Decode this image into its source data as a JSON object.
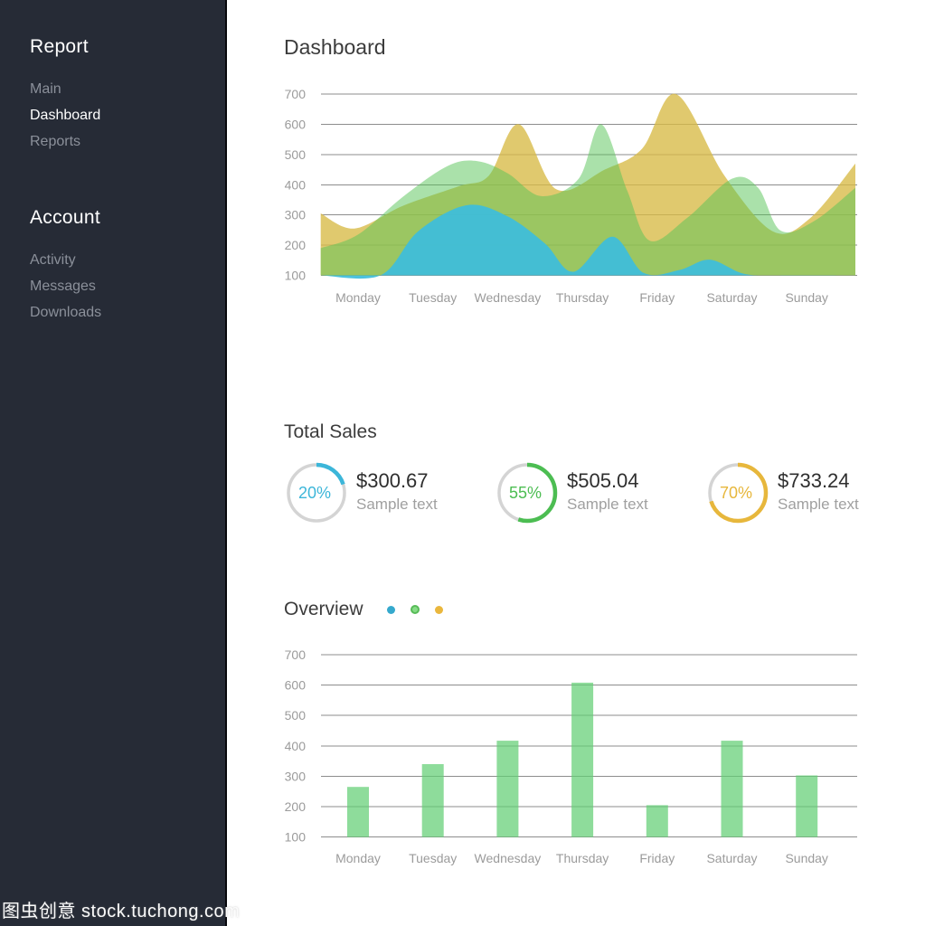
{
  "page": {
    "title": "Dashboard"
  },
  "sidebar": {
    "sections": [
      {
        "heading": "Report",
        "items": [
          {
            "label": "Main",
            "active": false
          },
          {
            "label": "Dashboard",
            "active": true
          },
          {
            "label": "Reports",
            "active": false
          }
        ]
      },
      {
        "heading": "Account",
        "items": [
          {
            "label": "Activity",
            "active": false
          },
          {
            "label": "Messages",
            "active": false
          },
          {
            "label": "Downloads",
            "active": false
          }
        ]
      }
    ]
  },
  "sales": {
    "title": "Total Sales",
    "ring_color": "#d4d4d4",
    "cards": [
      {
        "percent_label": "20%",
        "percent": 20,
        "amount": "$300.67",
        "subtitle": "Sample text",
        "color": "#3cb6d9"
      },
      {
        "percent_label": "55%",
        "percent": 55,
        "amount": "$505.04",
        "subtitle": "Sample text",
        "color": "#4cbd52"
      },
      {
        "percent_label": "70%",
        "percent": 70,
        "amount": "$733.24",
        "subtitle": "Sample text",
        "color": "#e7b73c"
      }
    ]
  },
  "overview": {
    "title": "Overview",
    "legend": [
      {
        "name": "blue-series",
        "color": "#35a9cd",
        "big": false
      },
      {
        "name": "green-series",
        "color": "#86dc86",
        "big": true
      },
      {
        "name": "yellow-series",
        "color": "#eab73d",
        "big": false
      }
    ]
  },
  "watermark": {
    "text": "图虫创意 stock.tuchong.com"
  },
  "chart_data": [
    {
      "type": "area",
      "title": "Dashboard weekly overlapping area chart",
      "categories": [
        "Monday",
        "Tuesday",
        "Wednesday",
        "Thursday",
        "Friday",
        "Saturday",
        "Sunday"
      ],
      "xlabel": "",
      "ylabel": "",
      "ylim": [
        100,
        700
      ],
      "yticks": [
        100,
        200,
        300,
        400,
        500,
        600,
        700
      ],
      "grid": true,
      "legend_position": "none",
      "x_units": "day-index (0 = Monday), plot clipped at -0.5 and 6.65",
      "series": [
        {
          "name": "yellow",
          "color": "#d7ba45",
          "opacity": 0.78,
          "points": [
            [
              -0.5,
              305
            ],
            [
              -0.05,
              255
            ],
            [
              0.6,
              330
            ],
            [
              1.35,
              395
            ],
            [
              1.75,
              430
            ],
            [
              2.15,
              600
            ],
            [
              2.65,
              385
            ],
            [
              3.3,
              450
            ],
            [
              3.8,
              520
            ],
            [
              4.25,
              700
            ],
            [
              4.9,
              430
            ],
            [
              5.55,
              245
            ],
            [
              6.05,
              290
            ],
            [
              6.65,
              470
            ]
          ]
        },
        {
          "name": "green",
          "color": "#56c456",
          "opacity": 0.5,
          "points": [
            [
              -0.5,
              190
            ],
            [
              0,
              235
            ],
            [
              0.6,
              360
            ],
            [
              1.2,
              462
            ],
            [
              1.6,
              478
            ],
            [
              2.0,
              438
            ],
            [
              2.45,
              362
            ],
            [
              2.95,
              420
            ],
            [
              3.25,
              600
            ],
            [
              3.6,
              380
            ],
            [
              3.9,
              215
            ],
            [
              4.4,
              290
            ],
            [
              5.0,
              420
            ],
            [
              5.35,
              390
            ],
            [
              5.65,
              248
            ],
            [
              6.1,
              280
            ],
            [
              6.65,
              390
            ]
          ]
        },
        {
          "name": "blue",
          "color": "#3dbddc",
          "opacity": 0.92,
          "points": [
            [
              -0.5,
              100
            ],
            [
              0.3,
              100
            ],
            [
              0.8,
              245
            ],
            [
              1.45,
              332
            ],
            [
              2.0,
              295
            ],
            [
              2.5,
              205
            ],
            [
              2.88,
              112
            ],
            [
              3.4,
              228
            ],
            [
              3.82,
              108
            ],
            [
              4.3,
              118
            ],
            [
              4.7,
              152
            ],
            [
              5.15,
              106
            ],
            [
              5.6,
              100
            ],
            [
              6.65,
              100
            ]
          ]
        }
      ]
    },
    {
      "type": "bar",
      "title": "Overview weekly bar chart",
      "categories": [
        "Monday",
        "Tuesday",
        "Wednesday",
        "Thursday",
        "Friday",
        "Saturday",
        "Sunday"
      ],
      "values": [
        265,
        340,
        417,
        608,
        205,
        417,
        303
      ],
      "color": "#62cf74",
      "opacity": 0.72,
      "xlabel": "",
      "ylabel": "",
      "ylim": [
        100,
        700
      ],
      "yticks": [
        100,
        200,
        300,
        400,
        500,
        600,
        700
      ],
      "grid": true,
      "baseline": 100
    }
  ]
}
